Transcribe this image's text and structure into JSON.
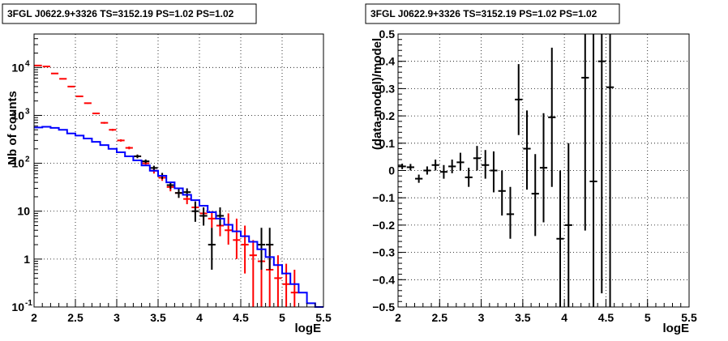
{
  "chart_data": [
    {
      "type": "line",
      "title": "3FGL J0622.9+3326 TS=3152.19 PS=1.02 PS=1.02",
      "xlabel": "logE",
      "ylabel": "Nb of counts",
      "xlim": [
        2,
        5.5
      ],
      "ylim": [
        0.1,
        50000
      ],
      "yscale": "log",
      "grid": true,
      "x_ticks": [
        "2",
        "2.5",
        "3",
        "3.5",
        "4",
        "4.5",
        "5",
        "5.5"
      ],
      "y_ticks": [
        {
          "value": 0.1,
          "base": "10",
          "exp": "-1"
        },
        {
          "value": 1,
          "base": "1",
          "exp": ""
        },
        {
          "value": 10,
          "base": "10",
          "exp": ""
        },
        {
          "value": 100,
          "base": "10",
          "exp": "2"
        },
        {
          "value": 1000,
          "base": "10",
          "exp": "3"
        },
        {
          "value": 10000,
          "base": "10",
          "exp": "4"
        }
      ],
      "series": [
        {
          "color": "#ff0000",
          "style": "errorbar",
          "points": [
            {
              "x": 2.05,
              "y": 11000,
              "lo": 10800,
              "hi": 11200
            },
            {
              "x": 2.15,
              "y": 10500,
              "lo": 10300,
              "hi": 10700
            },
            {
              "x": 2.25,
              "y": 7500,
              "lo": 7350,
              "hi": 7650
            },
            {
              "x": 2.35,
              "y": 5800,
              "lo": 5650,
              "hi": 5950
            },
            {
              "x": 2.45,
              "y": 4000,
              "lo": 3880,
              "hi": 4120
            },
            {
              "x": 2.55,
              "y": 2500,
              "lo": 2420,
              "hi": 2580
            },
            {
              "x": 2.65,
              "y": 1800,
              "lo": 1740,
              "hi": 1860
            },
            {
              "x": 2.75,
              "y": 1100,
              "lo": 1060,
              "hi": 1140
            },
            {
              "x": 2.85,
              "y": 700,
              "lo": 670,
              "hi": 730
            },
            {
              "x": 2.95,
              "y": 500,
              "lo": 475,
              "hi": 525
            },
            {
              "x": 3.05,
              "y": 300,
              "lo": 283,
              "hi": 317
            },
            {
              "x": 3.15,
              "y": 210,
              "lo": 196,
              "hi": 224
            },
            {
              "x": 3.25,
              "y": 140,
              "lo": 128,
              "hi": 152
            },
            {
              "x": 3.35,
              "y": 100,
              "lo": 90,
              "hi": 110
            },
            {
              "x": 3.45,
              "y": 70,
              "lo": 61,
              "hi": 79
            },
            {
              "x": 3.55,
              "y": 50,
              "lo": 43,
              "hi": 57
            },
            {
              "x": 3.65,
              "y": 32,
              "lo": 26,
              "hi": 38
            },
            {
              "x": 3.75,
              "y": 24,
              "lo": 19,
              "hi": 29
            },
            {
              "x": 3.85,
              "y": 18,
              "lo": 14,
              "hi": 22
            },
            {
              "x": 3.95,
              "y": 12,
              "lo": 9,
              "hi": 15
            },
            {
              "x": 4.05,
              "y": 9,
              "lo": 6,
              "hi": 12
            },
            {
              "x": 4.15,
              "y": 7,
              "lo": 4.5,
              "hi": 10
            },
            {
              "x": 4.25,
              "y": 5,
              "lo": 3,
              "hi": 8
            },
            {
              "x": 4.35,
              "y": 4,
              "lo": 2,
              "hi": 9
            },
            {
              "x": 4.45,
              "y": 2.5,
              "lo": 1,
              "hi": 7
            },
            {
              "x": 4.55,
              "y": 2,
              "lo": 0.5,
              "hi": 5
            },
            {
              "x": 4.65,
              "y": 1.2,
              "lo": 0.1,
              "hi": 2.5
            },
            {
              "x": 4.75,
              "y": 0.9,
              "lo": 0.1,
              "hi": 2.5
            },
            {
              "x": 4.85,
              "y": 0.6,
              "lo": 0.1,
              "hi": 2
            },
            {
              "x": 4.95,
              "y": 0.4,
              "lo": 0.1,
              "hi": 1.2
            },
            {
              "x": 5.05,
              "y": 0.3,
              "lo": 0.1,
              "hi": 0.8
            },
            {
              "x": 5.15,
              "y": 0.2,
              "lo": 0.1,
              "hi": 0.6
            }
          ]
        },
        {
          "color": "#000000",
          "style": "errorbar",
          "points": [
            {
              "x": 3.25,
              "y": 140,
              "lo": 128,
              "hi": 152
            },
            {
              "x": 3.35,
              "y": 110,
              "lo": 100,
              "hi": 120
            },
            {
              "x": 3.45,
              "y": 80,
              "lo": 71,
              "hi": 89
            },
            {
              "x": 3.55,
              "y": 55,
              "lo": 47,
              "hi": 63
            },
            {
              "x": 3.65,
              "y": 35,
              "lo": 29,
              "hi": 41
            },
            {
              "x": 3.75,
              "y": 24,
              "lo": 19,
              "hi": 29
            },
            {
              "x": 3.85,
              "y": 25,
              "lo": 20,
              "hi": 30
            },
            {
              "x": 3.95,
              "y": 10,
              "lo": 6,
              "hi": 16
            },
            {
              "x": 4.05,
              "y": 8,
              "lo": 5,
              "hi": 12
            },
            {
              "x": 4.15,
              "y": 2,
              "lo": 0.6,
              "hi": 4.5
            },
            {
              "x": 4.25,
              "y": 8,
              "lo": 5,
              "hi": 12
            },
            {
              "x": 4.75,
              "y": 2,
              "lo": 0.6,
              "hi": 4.5
            },
            {
              "x": 4.85,
              "y": 2,
              "lo": 0.6,
              "hi": 4.5
            }
          ]
        },
        {
          "color": "#0000ff",
          "style": "step",
          "edges": [
            2.0,
            2.1,
            2.2,
            2.3,
            2.4,
            2.5,
            2.6,
            2.7,
            2.8,
            2.9,
            3.0,
            3.1,
            3.2,
            3.3,
            3.4,
            3.5,
            3.6,
            3.7,
            3.8,
            3.9,
            4.0,
            4.1,
            4.2,
            4.3,
            4.4,
            4.5,
            4.6,
            4.7,
            4.8,
            4.9,
            5.0,
            5.1,
            5.2,
            5.3,
            5.4,
            5.5
          ],
          "values": [
            560,
            580,
            550,
            500,
            420,
            380,
            330,
            280,
            240,
            200,
            170,
            140,
            115,
            90,
            70,
            55,
            40,
            30,
            22,
            17,
            13,
            9.5,
            7,
            5.2,
            3.8,
            3,
            2.3,
            1.6,
            1.1,
            0.75,
            0.5,
            0.3,
            0.2,
            0.12,
            0.1
          ]
        }
      ]
    },
    {
      "type": "scatter",
      "title": "3FGL J0622.9+3326 TS=3152.19 PS=1.02 PS=1.02",
      "xlabel": "logE",
      "ylabel": "(data-model)/model",
      "xlim": [
        2,
        5.5
      ],
      "ylim": [
        -0.5,
        0.5
      ],
      "grid": true,
      "x_ticks": [
        "2",
        "2.5",
        "3",
        "3.5",
        "4",
        "4.5",
        "5",
        "5.5"
      ],
      "y_ticks": [
        {
          "value": -0.5,
          "label": "−0.5"
        },
        {
          "value": -0.4,
          "label": "−0.4"
        },
        {
          "value": -0.3,
          "label": "−0.3"
        },
        {
          "value": -0.2,
          "label": "−0.2"
        },
        {
          "value": -0.1,
          "label": "−0.1"
        },
        {
          "value": 0,
          "label": "0"
        },
        {
          "value": 0.1,
          "label": "0.1"
        },
        {
          "value": 0.2,
          "label": "0.2"
        },
        {
          "value": 0.3,
          "label": "0.3"
        },
        {
          "value": 0.4,
          "label": "0.4"
        },
        {
          "value": 0.5,
          "label": "0.5"
        }
      ],
      "series": [
        {
          "color": "#000000",
          "style": "errorbar",
          "points": [
            {
              "x": 2.05,
              "y": 0.015,
              "lo": 0.005,
              "hi": 0.025
            },
            {
              "x": 2.15,
              "y": 0.012,
              "lo": 0.0,
              "hi": 0.024
            },
            {
              "x": 2.25,
              "y": -0.03,
              "lo": -0.045,
              "hi": -0.015
            },
            {
              "x": 2.35,
              "y": 0.0,
              "lo": -0.015,
              "hi": 0.015
            },
            {
              "x": 2.45,
              "y": 0.02,
              "lo": 0.0,
              "hi": 0.04
            },
            {
              "x": 2.55,
              "y": -0.005,
              "lo": -0.03,
              "hi": 0.02
            },
            {
              "x": 2.65,
              "y": 0.015,
              "lo": -0.01,
              "hi": 0.04
            },
            {
              "x": 2.75,
              "y": 0.03,
              "lo": 0.0,
              "hi": 0.065
            },
            {
              "x": 2.85,
              "y": -0.025,
              "lo": -0.06,
              "hi": 0.01
            },
            {
              "x": 2.95,
              "y": 0.045,
              "lo": 0.0,
              "hi": 0.09
            },
            {
              "x": 3.05,
              "y": 0.02,
              "lo": -0.03,
              "hi": 0.075
            },
            {
              "x": 3.15,
              "y": 0.0,
              "lo": -0.08,
              "hi": 0.07
            },
            {
              "x": 3.25,
              "y": -0.075,
              "lo": -0.165,
              "hi": 0.0
            },
            {
              "x": 3.35,
              "y": -0.16,
              "lo": -0.25,
              "hi": -0.06
            },
            {
              "x": 3.45,
              "y": 0.26,
              "lo": 0.13,
              "hi": 0.39
            },
            {
              "x": 3.55,
              "y": 0.08,
              "lo": -0.07,
              "hi": 0.22
            },
            {
              "x": 3.65,
              "y": -0.085,
              "lo": -0.24,
              "hi": 0.06
            },
            {
              "x": 3.75,
              "y": 0.01,
              "lo": -0.19,
              "hi": 0.21
            },
            {
              "x": 3.85,
              "y": 0.195,
              "lo": -0.06,
              "hi": 0.45
            },
            {
              "x": 3.95,
              "y": -0.25,
              "lo": -0.5,
              "hi": 0.0
            },
            {
              "x": 4.05,
              "y": -0.2,
              "lo": -0.5,
              "hi": 0.1
            },
            {
              "x": 4.25,
              "y": 0.34,
              "lo": -0.22,
              "hi": 0.5
            },
            {
              "x": 4.35,
              "y": -0.04,
              "lo": -0.5,
              "hi": 0.5
            },
            {
              "x": 4.45,
              "y": 0.4,
              "lo": -0.45,
              "hi": 0.5
            },
            {
              "x": 4.55,
              "y": 0.305,
              "lo": -0.5,
              "hi": 0.5
            }
          ]
        }
      ]
    }
  ]
}
